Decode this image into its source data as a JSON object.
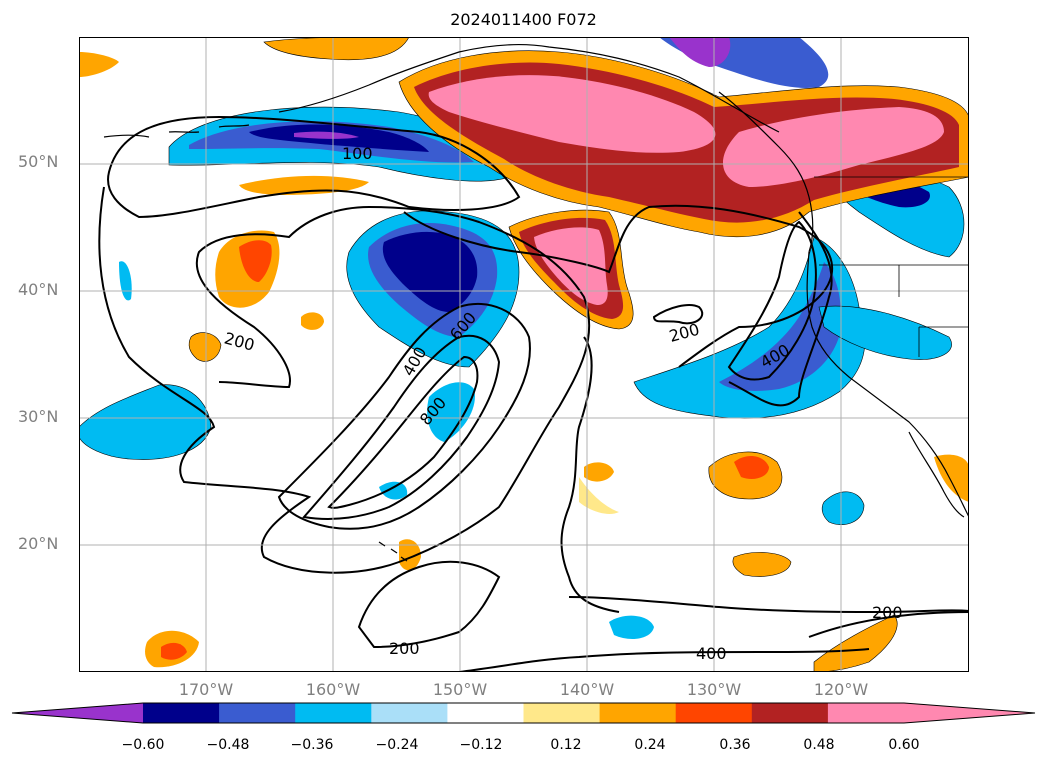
{
  "title": "2024011400 F072",
  "latitude_labels": [
    "50°N",
    "40°N",
    "30°N",
    "20°N"
  ],
  "longitude_labels": [
    "170°W",
    "160°W",
    "150°W",
    "140°W",
    "130°W",
    "120°W"
  ],
  "contour_labels": [
    "100",
    "200",
    "200",
    "400",
    "600",
    "800",
    "400",
    "200",
    "200",
    "400"
  ],
  "colorbar": {
    "ticks": [
      "−0.60",
      "−0.48",
      "−0.36",
      "−0.24",
      "−0.12",
      "0.12",
      "0.24",
      "0.36",
      "0.48",
      "0.60"
    ],
    "colors": [
      "#9933cc",
      "#00008b",
      "#3a5cd0",
      "#00bbf2",
      "#aadff8",
      "#ffffff",
      "#ffe88a",
      "#ffa500",
      "#ff4500",
      "#b22222",
      "#ff88b0",
      "#ff88b0"
    ]
  },
  "colors": {
    "purple": "#9933cc",
    "navy": "#00008b",
    "blue": "#3a5cd0",
    "cyan": "#00bbf2",
    "lightcyan": "#aadff8",
    "yellow": "#ffe88a",
    "orange": "#ffa500",
    "redorange": "#ff4500",
    "firebrick": "#b22222",
    "pink": "#ff88b0"
  }
}
